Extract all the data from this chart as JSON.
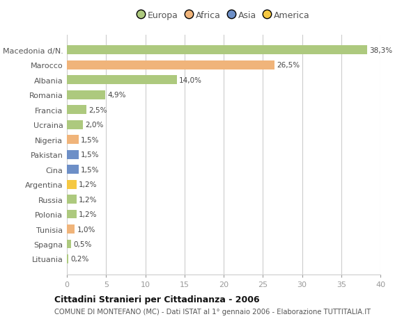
{
  "categories": [
    "Macedonia d/N.",
    "Marocco",
    "Albania",
    "Romania",
    "Francia",
    "Ucraina",
    "Nigeria",
    "Pakistan",
    "Cina",
    "Argentina",
    "Russia",
    "Polonia",
    "Tunisia",
    "Spagna",
    "Lituania"
  ],
  "values": [
    38.3,
    26.5,
    14.0,
    4.9,
    2.5,
    2.0,
    1.5,
    1.5,
    1.5,
    1.2,
    1.2,
    1.2,
    1.0,
    0.5,
    0.2
  ],
  "labels": [
    "38,3%",
    "26,5%",
    "14,0%",
    "4,9%",
    "2,5%",
    "2,0%",
    "1,5%",
    "1,5%",
    "1,5%",
    "1,2%",
    "1,2%",
    "1,2%",
    "1,0%",
    "0,5%",
    "0,2%"
  ],
  "bar_colors": [
    "#adc97e",
    "#f0b47a",
    "#adc97e",
    "#adc97e",
    "#adc97e",
    "#adc97e",
    "#f0b47a",
    "#6d8fc7",
    "#6d8fc7",
    "#f5c842",
    "#adc97e",
    "#adc97e",
    "#f0b47a",
    "#adc97e",
    "#adc97e"
  ],
  "legend_labels": [
    "Europa",
    "Africa",
    "Asia",
    "America"
  ],
  "legend_colors": [
    "#adc97e",
    "#f0b47a",
    "#6d8fc7",
    "#f5c842"
  ],
  "title": "Cittadini Stranieri per Cittadinanza - 2006",
  "subtitle": "COMUNE DI MONTEFANO (MC) - Dati ISTAT al 1° gennaio 2006 - Elaborazione TUTTITALIA.IT",
  "xlim": [
    0,
    40
  ],
  "xticks": [
    0,
    5,
    10,
    15,
    20,
    25,
    30,
    35,
    40
  ],
  "background_color": "#ffffff",
  "grid_color": "#cccccc",
  "bar_height": 0.6
}
